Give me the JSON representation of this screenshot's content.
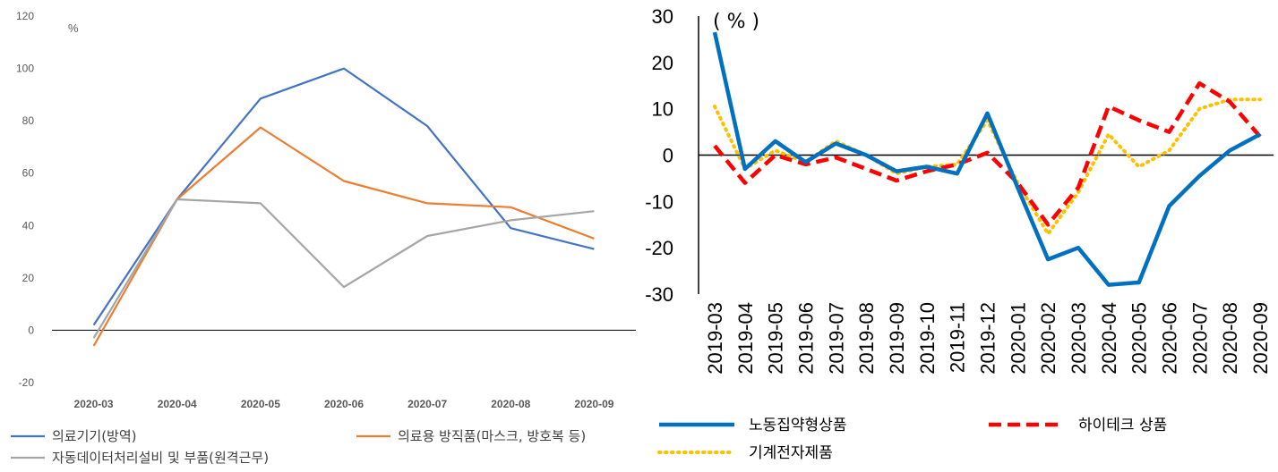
{
  "chart_data": [
    {
      "type": "line",
      "unit": "%",
      "categories": [
        "2020-03",
        "2020-04",
        "2020-05",
        "2020-06",
        "2020-07",
        "2020-08",
        "2020-09"
      ],
      "ylim": [
        -20,
        120
      ],
      "yticks": [
        "120",
        "100",
        "80",
        "60",
        "40",
        "20",
        "0",
        "-20"
      ],
      "grid": false,
      "legend_position": "bottom",
      "series": [
        {
          "name": "의료기기(방역)",
          "color": "#4472C4",
          "values": [
            2,
            50,
            88.5,
            100,
            78,
            39,
            31
          ]
        },
        {
          "name": "의료용 방직품(마스크, 방호복 등)",
          "color": "#ED7D31",
          "values": [
            -6,
            50,
            77.5,
            57,
            48.5,
            47,
            35
          ]
        },
        {
          "name": "자동데이터처리설비 및 부품(원격근무)",
          "color": "#A5A5A5",
          "values": [
            -3,
            50,
            48.5,
            16.5,
            36,
            42,
            45.5
          ]
        }
      ]
    },
    {
      "type": "line",
      "unit": "( % )",
      "categories": [
        "2019-03",
        "2019-04",
        "2019-05",
        "2019-06",
        "2019-07",
        "2019-08",
        "2019-09",
        "2019-10",
        "2019-11",
        "2019-12",
        "2020-01",
        "2020-02",
        "2020-03",
        "2020-04",
        "2020-05",
        "2020-06",
        "2020-07",
        "2020-08",
        "2020-09"
      ],
      "ylim": [
        -30,
        30
      ],
      "yticks": [
        "30",
        "20",
        "10",
        "0",
        "-10",
        "-20",
        "-30"
      ],
      "grid": false,
      "legend_position": "bottom",
      "series": [
        {
          "name": "노동집약형상품",
          "color": "#0070C0",
          "style": "solid",
          "values": [
            26.5,
            -3,
            3,
            -1.5,
            2.5,
            0,
            -3.5,
            -2.5,
            -4,
            9,
            -7,
            -22.5,
            -20,
            -28,
            -27.5,
            -11,
            -4.5,
            1,
            4.5
          ]
        },
        {
          "name": "하이테크 상품",
          "color": "#FF0000",
          "style": "dashed",
          "values": [
            2,
            -6,
            0,
            -2,
            -0.5,
            -3,
            -5.5,
            -3.5,
            -2,
            0.5,
            -6,
            -15,
            -7,
            10.5,
            7.5,
            5,
            15.5,
            11.5,
            4
          ]
        },
        {
          "name": "기계전자제품",
          "color": "#FFC000",
          "style": "dotted",
          "values": [
            10.5,
            -3,
            1,
            -1.5,
            3,
            0,
            -4,
            -2.5,
            -2,
            7.5,
            -6,
            -17,
            -8,
            4.5,
            -2.5,
            1,
            10,
            12,
            12
          ]
        }
      ]
    }
  ]
}
